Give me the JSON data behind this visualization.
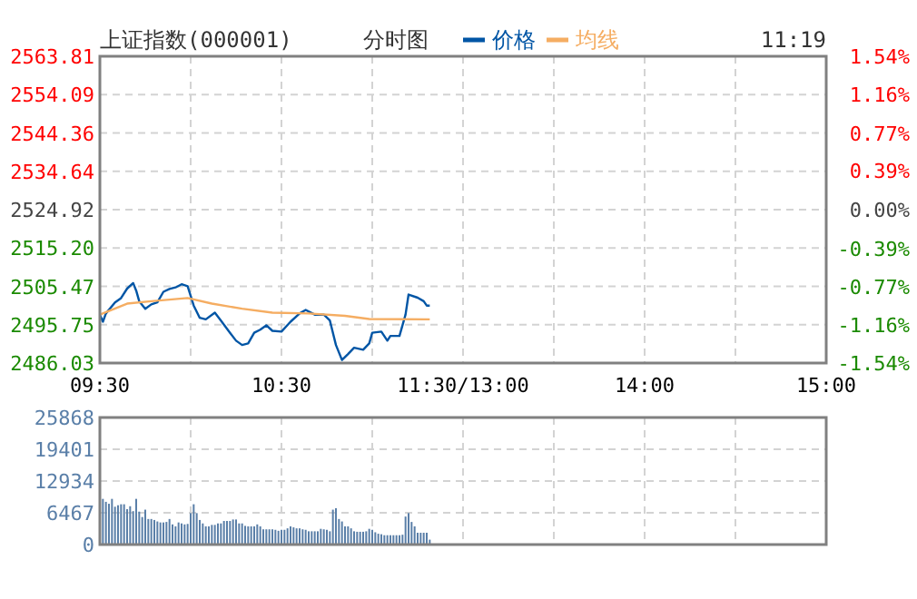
{
  "chart_data": [
    {
      "type": "line",
      "title": "上证指数(000001)",
      "subtitle": "分时图",
      "annotations": [
        "11:19"
      ],
      "legend": "top",
      "grid": true,
      "line_style": "solid",
      "marker": "none",
      "categories": [
        "09:30",
        null,
        null,
        null,
        null,
        null,
        null,
        null,
        null,
        null,
        null,
        null,
        null,
        null,
        null,
        null,
        null,
        null,
        null,
        null,
        null,
        null,
        null,
        null,
        null,
        null,
        null,
        null,
        null,
        null,
        null,
        null,
        null,
        null,
        null,
        null,
        null,
        null,
        null,
        null,
        null,
        null,
        null,
        null,
        null,
        null,
        null,
        null,
        null,
        null,
        null,
        null,
        null,
        null,
        null,
        null,
        null,
        null,
        null,
        null,
        "10:30",
        null,
        null,
        null,
        null,
        null,
        null,
        null,
        null,
        null,
        null,
        null,
        null,
        null,
        null,
        null,
        null,
        null,
        null,
        null,
        null,
        null,
        null,
        null,
        null,
        null,
        null,
        null,
        null,
        null,
        null,
        null,
        null,
        null,
        null,
        null,
        null,
        null,
        null,
        null,
        null,
        null,
        null,
        null,
        null,
        null,
        null,
        null,
        null,
        null,
        null,
        null,
        null,
        null,
        null,
        null,
        null,
        null,
        null,
        null,
        "11:30/13:00",
        null,
        null,
        null,
        null,
        null,
        null,
        null,
        null,
        null,
        null,
        null,
        null,
        null,
        null,
        null,
        null,
        null,
        null,
        null,
        null,
        null,
        null,
        null,
        null,
        null,
        null,
        null,
        null,
        null,
        null,
        null,
        null,
        null,
        null,
        null,
        null,
        null,
        null,
        null,
        null,
        null,
        null,
        null,
        null,
        null,
        null,
        null,
        null,
        null,
        null,
        null,
        null,
        null,
        null,
        null,
        null,
        null,
        null,
        null,
        "14:00",
        null,
        null,
        null,
        null,
        null,
        null,
        null,
        null,
        null,
        null,
        null,
        null,
        null,
        null,
        null,
        null,
        null,
        null,
        null,
        null,
        null,
        null,
        null,
        null,
        null,
        null,
        null,
        null,
        null,
        null,
        null,
        null,
        null,
        null,
        null,
        null,
        null,
        null,
        null,
        null,
        null,
        null,
        null,
        null,
        null,
        null,
        null,
        null,
        null,
        null,
        null,
        null,
        null,
        null,
        null,
        null,
        null,
        null,
        null,
        "15:00"
      ],
      "ylim": [
        2486.03,
        2563.81
      ],
      "yticks": [
        {
          "value": 2486.03,
          "label": "2486.03"
        },
        {
          "value": 2495.75,
          "label": "2495.75"
        },
        {
          "value": 2505.47,
          "label": "2505.47"
        },
        {
          "value": 2515.2,
          "label": "2515.20"
        },
        {
          "value": 2524.92,
          "label": "2524.92"
        },
        {
          "value": 2534.64,
          "label": "2534.64"
        },
        {
          "value": 2544.36,
          "label": "2544.36"
        },
        {
          "value": 2554.09,
          "label": "2554.09"
        },
        {
          "value": 2563.81,
          "label": "2563.81"
        }
      ],
      "y2lim": [
        -1.54,
        1.54
      ],
      "y2ticks": [
        {
          "value": -1.54,
          "label": "-1.54%"
        },
        {
          "value": -1.16,
          "label": "-1.16%"
        },
        {
          "value": -0.77,
          "label": "-0.77%"
        },
        {
          "value": -0.39,
          "label": "-0.39%"
        },
        {
          "value": 0,
          "label": "0.00%"
        },
        {
          "value": 0.39,
          "label": "0.39%"
        },
        {
          "value": 0.77,
          "label": "0.77%"
        },
        {
          "value": 1.16,
          "label": "1.16%"
        },
        {
          "value": 1.54,
          "label": "1.54%"
        }
      ],
      "series": [
        {
          "name": "价格",
          "color": "#0055a5",
          "values": [
            2498.3,
            2496.5,
            2498.6,
            null,
            null,
            2501.4,
            null,
            2502.5,
            null,
            2504.9,
            null,
            2506.3,
            2504.4,
            2501.7,
            null,
            2499.8,
            null,
            2500.9,
            null,
            2501.4,
            null,
            2504.1,
            null,
            2504.8,
            null,
            2505.2,
            null,
            2506.0,
            null,
            2505.5,
            null,
            2500.6,
            null,
            2497.5,
            null,
            2497.1,
            null,
            null,
            2498.8,
            null,
            2496.8,
            null,
            null,
            2493.7,
            null,
            2491.7,
            null,
            2490.6,
            null,
            2491.0,
            null,
            2493.7,
            null,
            2494.5,
            null,
            2495.6,
            null,
            2494.2,
            null,
            null,
            2494.0,
            null,
            null,
            2496.5,
            null,
            null,
            2498.6,
            null,
            2499.5,
            null,
            null,
            2498.3,
            null,
            null,
            2498.3,
            null,
            2496.8,
            null,
            2490.6,
            null,
            2486.8,
            null,
            2488.3,
            null,
            2489.9,
            null,
            null,
            2489.4,
            null,
            2491.0,
            2493.7,
            null,
            null,
            2494.0,
            null,
            2491.7,
            2492.9,
            null,
            null,
            2492.9,
            null,
            2498.3,
            2503.4,
            null,
            null,
            2502.6,
            null,
            2501.7,
            2500.6,
            2500.6,
            null,
            null,
            null,
            null,
            null,
            null,
            null,
            null,
            null,
            null,
            null,
            null,
            null,
            null,
            null,
            null,
            null,
            null,
            null,
            null,
            null,
            null,
            null,
            null,
            null,
            null,
            null,
            null,
            null,
            null,
            null,
            null,
            null,
            null,
            null,
            null,
            null,
            null,
            null,
            null,
            null,
            null,
            null,
            null,
            null,
            null,
            null,
            null,
            null,
            null,
            null,
            null,
            null,
            null,
            null,
            null,
            null,
            null,
            null,
            null,
            null,
            null,
            null,
            null,
            null,
            null,
            null,
            null,
            null,
            null,
            null,
            null,
            null,
            null,
            null,
            null,
            null,
            null,
            null,
            null,
            null,
            null,
            null,
            null,
            null,
            null,
            null,
            null,
            null,
            null,
            null,
            null,
            null,
            null,
            null,
            null,
            null,
            null,
            null,
            null,
            null,
            null,
            null,
            null,
            null,
            null,
            null,
            null,
            null,
            null,
            null,
            null,
            null,
            null,
            null,
            null,
            null,
            null,
            null,
            null,
            null,
            null,
            null,
            null,
            null,
            null,
            null,
            null,
            null,
            null,
            null
          ]
        },
        {
          "name": "均线",
          "color": "#f5ad62",
          "values": [
            2498.3,
            null,
            null,
            null,
            null,
            null,
            null,
            null,
            null,
            2501.1,
            null,
            null,
            null,
            null,
            null,
            null,
            null,
            2501.7,
            null,
            null,
            null,
            null,
            null,
            null,
            null,
            null,
            null,
            null,
            null,
            2502.5,
            null,
            null,
            null,
            null,
            null,
            null,
            null,
            2501.1,
            null,
            null,
            null,
            null,
            null,
            null,
            null,
            null,
            null,
            2499.8,
            null,
            null,
            null,
            null,
            null,
            null,
            null,
            null,
            null,
            2498.8,
            null,
            null,
            null,
            null,
            null,
            null,
            null,
            null,
            null,
            null,
            null,
            2498.6,
            null,
            null,
            null,
            null,
            null,
            null,
            null,
            null,
            null,
            null,
            null,
            2498.0,
            null,
            null,
            null,
            null,
            null,
            null,
            null,
            2497.2,
            null,
            null,
            null,
            null,
            null,
            null,
            null,
            null,
            null,
            null,
            null,
            null,
            null,
            null,
            null,
            null,
            null,
            null,
            null,
            2497.1,
            null,
            null,
            null,
            null,
            null,
            null,
            null,
            null,
            null,
            null,
            null,
            null,
            null,
            null,
            null,
            null,
            null,
            null,
            null,
            null,
            null,
            null,
            null,
            null,
            null,
            null,
            null,
            null,
            null,
            null,
            null,
            null,
            null,
            null,
            null,
            null,
            null,
            null,
            null,
            null,
            null,
            null,
            null,
            null,
            null,
            null,
            null,
            null,
            null,
            null,
            null,
            null,
            null,
            null,
            null,
            null,
            null,
            null,
            null,
            null,
            null,
            null,
            null,
            null,
            null,
            null,
            null,
            null,
            null,
            null,
            null,
            null,
            null,
            null,
            null,
            null,
            null,
            null,
            null,
            null,
            null,
            null,
            null,
            null,
            null,
            null,
            null,
            null,
            null,
            null,
            null,
            null,
            null,
            null,
            null,
            null,
            null,
            null,
            null,
            null,
            null,
            null,
            null,
            null,
            null,
            null,
            null,
            null,
            null,
            null,
            null,
            null,
            null,
            null,
            null,
            null,
            null,
            null,
            null,
            null,
            null,
            null,
            null,
            null,
            null,
            null,
            null,
            null,
            null,
            null,
            null
          ]
        }
      ]
    },
    {
      "type": "bar",
      "grid": true,
      "color": "#5a7fa8",
      "categories": [
        null,
        null,
        null,
        null,
        null,
        null,
        null,
        null,
        null,
        null,
        null,
        null,
        null,
        null,
        null,
        null,
        null,
        null,
        null,
        null,
        null,
        null,
        null,
        null,
        null,
        null,
        null,
        null,
        null,
        null,
        null,
        null,
        null,
        null,
        null,
        null,
        null,
        null,
        null,
        null,
        null,
        null,
        null,
        null,
        null,
        null,
        null,
        null,
        null,
        null,
        null,
        null,
        null,
        null,
        null,
        null,
        null,
        null,
        null,
        null,
        null,
        null,
        null,
        null,
        null,
        null,
        null,
        null,
        null,
        null,
        null,
        null,
        null,
        null,
        null,
        null,
        null,
        null,
        null,
        null,
        null,
        null,
        null,
        null,
        null,
        null,
        null,
        null,
        null,
        null,
        null,
        null,
        null,
        null,
        null,
        null,
        null,
        null,
        null,
        null,
        null,
        null,
        null,
        null,
        null,
        null,
        null,
        null,
        null,
        null,
        null,
        null,
        null,
        null,
        null,
        null,
        null,
        null,
        null,
        null,
        null,
        null,
        null,
        null,
        null,
        null,
        null,
        null,
        null,
        null,
        null,
        null,
        null,
        null,
        null,
        null,
        null,
        null,
        null,
        null,
        null,
        null,
        null,
        null,
        null,
        null,
        null,
        null,
        null,
        null,
        null,
        null,
        null,
        null,
        null,
        null,
        null,
        null,
        null,
        null,
        null,
        null,
        null,
        null,
        null,
        null,
        null,
        null,
        null,
        null,
        null,
        null,
        null,
        null,
        null,
        null,
        null,
        null,
        null,
        null,
        null,
        null,
        null,
        null,
        null,
        null,
        null,
        null,
        null,
        null,
        null,
        null,
        null,
        null,
        null,
        null,
        null,
        null,
        null,
        null,
        null,
        null,
        null,
        null,
        null,
        null,
        null,
        null,
        null,
        null,
        null,
        null,
        null,
        null,
        null,
        null,
        null,
        null,
        null,
        null,
        null,
        null,
        null,
        null,
        null,
        null,
        null,
        null,
        null,
        null,
        null,
        null,
        null,
        null,
        null,
        null,
        null,
        null,
        null,
        null,
        null
      ],
      "ylim": [
        0,
        25868
      ],
      "yticks": [
        0,
        6467,
        12934,
        19401,
        25868
      ],
      "values": [
        null,
        9300,
        8700,
        8300,
        9300,
        7700,
        8000,
        8200,
        8200,
        7200,
        7800,
        6800,
        9300,
        6700,
        5600,
        7100,
        5200,
        5200,
        5000,
        4700,
        4500,
        4500,
        4600,
        5200,
        4100,
        3700,
        4500,
        4300,
        4100,
        4200,
        6400,
        8200,
        6400,
        5000,
        4300,
        3700,
        3700,
        4000,
        4000,
        4300,
        4300,
        4800,
        4800,
        4800,
        5100,
        5100,
        4300,
        4300,
        3800,
        3700,
        3700,
        3700,
        4100,
        3700,
        3100,
        3100,
        3100,
        3100,
        3000,
        2800,
        3000,
        3000,
        3300,
        3700,
        3500,
        3300,
        3300,
        3100,
        3000,
        2700,
        2700,
        2700,
        2700,
        3200,
        3100,
        3000,
        2700,
        7100,
        7400,
        5200,
        4700,
        3700,
        3700,
        3300,
        2700,
        2600,
        2600,
        2600,
        2700,
        3200,
        3000,
        2500,
        2200,
        2100,
        1900,
        1900,
        1900,
        1900,
        1900,
        1900,
        2000,
        5700,
        6400,
        4600,
        3700,
        2400,
        2400,
        2400,
        2400,
        1000,
        null,
        null,
        null,
        null,
        null,
        null,
        null,
        null,
        null,
        null,
        null,
        null,
        null,
        null,
        null,
        null,
        null,
        null,
        null,
        null,
        null,
        null,
        null,
        null,
        null,
        null,
        null,
        null,
        null,
        null,
        null,
        null,
        null,
        null,
        null,
        null,
        null,
        null,
        null,
        null,
        null,
        null,
        null,
        null,
        null,
        null,
        null,
        null,
        null,
        null,
        null,
        null,
        null,
        null,
        null,
        null,
        null,
        null,
        null,
        null,
        null,
        null,
        null,
        null,
        null,
        null,
        null,
        null,
        null,
        null,
        null,
        null,
        null,
        null,
        null,
        null,
        null,
        null,
        null,
        null,
        null,
        null,
        null,
        null,
        null,
        null,
        null,
        null,
        null,
        null,
        null,
        null,
        null,
        null,
        null,
        null,
        null,
        null,
        null,
        null,
        null,
        null,
        null,
        null,
        null,
        null,
        null,
        null,
        null,
        null,
        null,
        null,
        null,
        null,
        null,
        null,
        null,
        null,
        null,
        null,
        null,
        null,
        null,
        null,
        null,
        null,
        null,
        null,
        null,
        null,
        null
      ]
    }
  ]
}
